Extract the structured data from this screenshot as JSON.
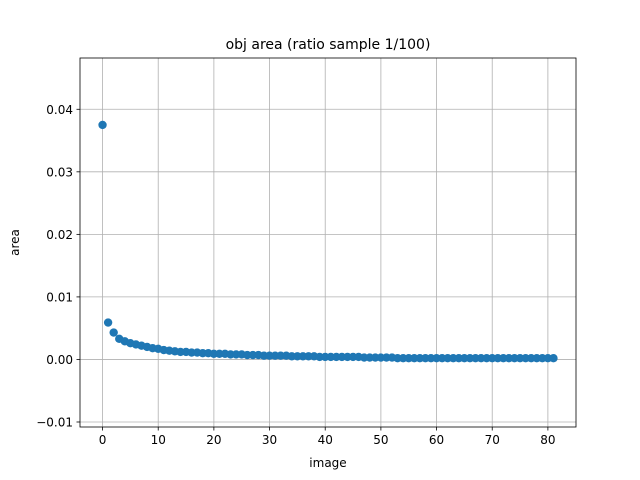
{
  "chart_data": {
    "type": "scatter",
    "title": "obj area (ratio sample 1/100)",
    "xlabel": "image",
    "ylabel": "area",
    "xlim": [
      -4.05,
      85.05
    ],
    "ylim": [
      -0.0108,
      0.0482
    ],
    "xticks": [
      0,
      10,
      20,
      30,
      40,
      50,
      60,
      70,
      80
    ],
    "xtick_labels": [
      "0",
      "10",
      "20",
      "30",
      "40",
      "50",
      "60",
      "70",
      "80"
    ],
    "yticks": [
      -0.01,
      0.0,
      0.01,
      0.02,
      0.03,
      0.04
    ],
    "ytick_labels": [
      "−0.01",
      "0.00",
      "0.01",
      "0.02",
      "0.03",
      "0.04"
    ],
    "grid": true,
    "marker_color": "#1f77b4",
    "x": [
      0,
      1,
      2,
      3,
      4,
      5,
      6,
      7,
      8,
      9,
      10,
      11,
      12,
      13,
      14,
      15,
      16,
      17,
      18,
      19,
      20,
      21,
      22,
      23,
      24,
      25,
      26,
      27,
      28,
      29,
      30,
      31,
      32,
      33,
      34,
      35,
      36,
      37,
      38,
      39,
      40,
      41,
      42,
      43,
      44,
      45,
      46,
      47,
      48,
      49,
      50,
      51,
      52,
      53,
      54,
      55,
      56,
      57,
      58,
      59,
      60,
      61,
      62,
      63,
      64,
      65,
      66,
      67,
      68,
      69,
      70,
      71,
      72,
      73,
      74,
      75,
      76,
      77,
      78,
      79,
      80,
      81
    ],
    "y": [
      0.0375,
      0.0059,
      0.0043,
      0.0033,
      0.0029,
      0.0026,
      0.0024,
      0.0022,
      0.002,
      0.0018,
      0.0017,
      0.0015,
      0.0014,
      0.0013,
      0.0012,
      0.0012,
      0.0011,
      0.0011,
      0.001,
      0.001,
      0.0009,
      0.0009,
      0.0009,
      0.0008,
      0.0008,
      0.0008,
      0.0007,
      0.0007,
      0.0007,
      0.0006,
      0.0006,
      0.0006,
      0.0006,
      0.0006,
      0.0005,
      0.0005,
      0.0005,
      0.0005,
      0.0005,
      0.0004,
      0.0004,
      0.0004,
      0.0004,
      0.0004,
      0.0004,
      0.0004,
      0.0004,
      0.0003,
      0.0003,
      0.0003,
      0.0003,
      0.0003,
      0.0003,
      0.0002,
      0.0002,
      0.0002,
      0.0002,
      0.0002,
      0.0002,
      0.0002,
      0.0002,
      0.0002,
      0.0002,
      0.0002,
      0.0002,
      0.0002,
      0.0002,
      0.0002,
      0.0002,
      0.0002,
      0.0002,
      0.0002,
      0.0002,
      0.0002,
      0.0002,
      0.0002,
      0.0002,
      0.0002,
      0.0002,
      0.0002,
      0.0002,
      0.0002
    ]
  }
}
